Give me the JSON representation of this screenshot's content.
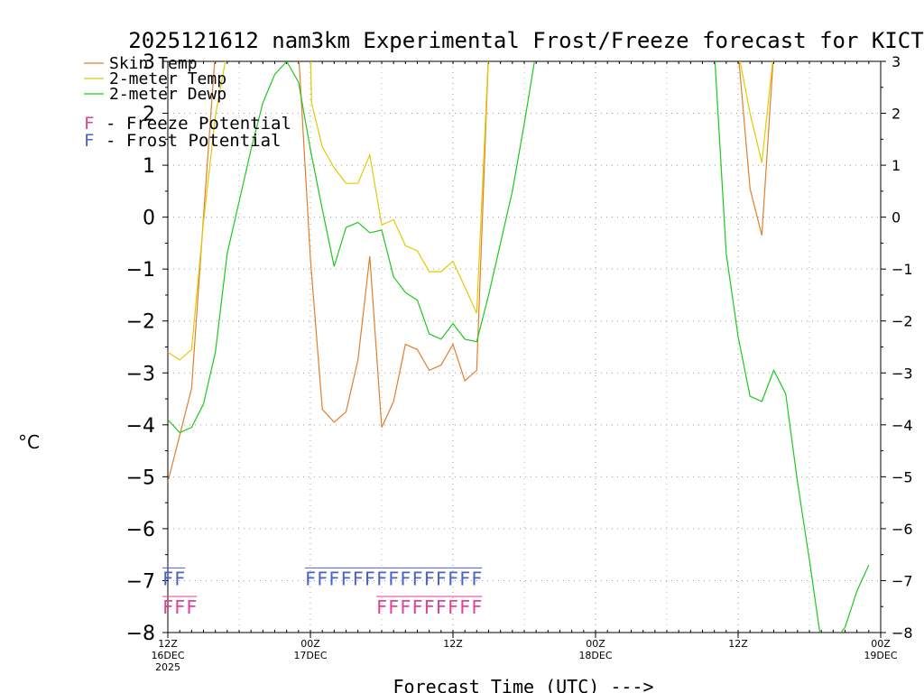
{
  "chart_data": {
    "type": "line",
    "title": "2025121612 nam3km Experimental Frost/Freeze forecast for KICT",
    "ylabel": "°C",
    "xlabel": "Forecast Time (UTC) --->",
    "ylim": [
      -8,
      3
    ],
    "xlim": [
      0,
      60
    ],
    "x_units": "hours since 2025-12-16 12Z",
    "grid": true,
    "yticks": [
      {
        "value": 3,
        "left": "3",
        "right": "3"
      },
      {
        "value": 2,
        "left": "2",
        "right": "2"
      },
      {
        "value": 1,
        "left": "1",
        "right": "1"
      },
      {
        "value": 0,
        "left": "0",
        "right": "0"
      },
      {
        "value": -1,
        "left": "−1",
        "right": "−1"
      },
      {
        "value": -2,
        "left": "−2",
        "right": "−2"
      },
      {
        "value": -3,
        "left": "−3",
        "right": "−3"
      },
      {
        "value": -4,
        "left": "−4",
        "right": "−4"
      },
      {
        "value": -5,
        "left": "−5",
        "right": "−5"
      },
      {
        "value": -6,
        "left": "−6",
        "right": "−6"
      },
      {
        "value": -7,
        "left": "−7",
        "right": "−7"
      },
      {
        "value": -8,
        "left": "−8",
        "right": "−8"
      }
    ],
    "xticks": [
      {
        "hour": 0,
        "lines": [
          "12Z",
          "16DEC",
          "2025"
        ]
      },
      {
        "hour": 12,
        "lines": [
          "00Z",
          "17DEC"
        ]
      },
      {
        "hour": 24,
        "lines": [
          "12Z"
        ]
      },
      {
        "hour": 36,
        "lines": [
          "00Z",
          "18DEC"
        ]
      },
      {
        "hour": 48,
        "lines": [
          "12Z"
        ]
      },
      {
        "hour": 60,
        "lines": [
          "00Z",
          "19DEC"
        ]
      }
    ],
    "series": [
      {
        "name": "Skin Temp",
        "color": "#e07f2e",
        "points": [
          [
            0,
            -5.1
          ],
          [
            1,
            -4.2
          ],
          [
            2,
            -3.3
          ],
          [
            3,
            0.0
          ],
          [
            4,
            3.2
          ],
          [
            11,
            3.2
          ],
          [
            12,
            -0.8
          ],
          [
            13,
            -3.7
          ],
          [
            14,
            -3.95
          ],
          [
            15,
            -3.75
          ],
          [
            16,
            -2.75
          ],
          [
            17,
            -0.75
          ],
          [
            18,
            -4.05
          ],
          [
            19,
            -3.55
          ],
          [
            20,
            -2.45
          ],
          [
            21,
            -2.55
          ],
          [
            22,
            -2.95
          ],
          [
            23,
            -2.85
          ],
          [
            24,
            -2.45
          ],
          [
            25,
            -3.15
          ],
          [
            26,
            -2.95
          ],
          [
            27,
            3.2
          ],
          [
            48,
            3.2
          ],
          [
            49,
            0.55
          ],
          [
            50,
            -0.35
          ],
          [
            51,
            3.2
          ]
        ]
      },
      {
        "name": "2-meter Temp",
        "color": "#e6c800",
        "points": [
          [
            0,
            -2.6
          ],
          [
            1,
            -2.75
          ],
          [
            2,
            -2.55
          ],
          [
            3,
            -0.1
          ],
          [
            4,
            1.95
          ],
          [
            5,
            3.2
          ],
          [
            12,
            3.2
          ],
          [
            12.1,
            2.2
          ],
          [
            13,
            1.35
          ],
          [
            14,
            0.95
          ],
          [
            15,
            0.65
          ],
          [
            16,
            0.65
          ],
          [
            17,
            1.2
          ],
          [
            18,
            -0.15
          ],
          [
            19,
            -0.05
          ],
          [
            20,
            -0.55
          ],
          [
            21,
            -0.65
          ],
          [
            22,
            -1.05
          ],
          [
            23,
            -1.05
          ],
          [
            24,
            -0.85
          ],
          [
            25,
            -1.35
          ],
          [
            26,
            -1.85
          ],
          [
            27,
            3.2
          ],
          [
            48,
            3.2
          ],
          [
            49,
            2.0
          ],
          [
            50,
            1.05
          ],
          [
            51,
            3.2
          ]
        ]
      },
      {
        "name": "2-meter Dewp",
        "color": "#1ec81e",
        "points": [
          [
            0,
            -3.9
          ],
          [
            1,
            -4.15
          ],
          [
            2,
            -4.05
          ],
          [
            3,
            -3.6
          ],
          [
            4,
            -2.6
          ],
          [
            5,
            -0.7
          ],
          [
            6,
            0.3
          ],
          [
            7,
            1.3
          ],
          [
            8,
            2.2
          ],
          [
            9,
            2.75
          ],
          [
            10,
            3.0
          ],
          [
            11,
            2.6
          ],
          [
            12,
            1.3
          ],
          [
            13,
            0.15
          ],
          [
            14,
            -0.95
          ],
          [
            15,
            -0.2
          ],
          [
            16,
            -0.1
          ],
          [
            17,
            -0.3
          ],
          [
            18,
            -0.25
          ],
          [
            19,
            -1.15
          ],
          [
            20,
            -1.45
          ],
          [
            21,
            -1.6
          ],
          [
            22,
            -2.25
          ],
          [
            23,
            -2.35
          ],
          [
            24,
            -2.05
          ],
          [
            25,
            -2.35
          ],
          [
            26,
            -2.4
          ],
          [
            27,
            -1.5
          ],
          [
            28,
            -0.5
          ],
          [
            29,
            0.5
          ],
          [
            30,
            1.8
          ],
          [
            31,
            3.2
          ],
          [
            46,
            3.2
          ],
          [
            47,
            -0.7
          ],
          [
            48,
            -2.3
          ],
          [
            49,
            -3.45
          ],
          [
            50,
            -3.55
          ],
          [
            51,
            -2.95
          ],
          [
            52,
            -3.4
          ],
          [
            53,
            -5.1
          ],
          [
            54,
            -6.6
          ],
          [
            55,
            -8.2
          ],
          [
            56,
            -8.2
          ],
          [
            57,
            -7.9
          ],
          [
            58,
            -7.2
          ],
          [
            59,
            -6.7
          ]
        ]
      }
    ],
    "legend": [
      {
        "label": "Skin Temp",
        "color": "#e07f2e"
      },
      {
        "label": "2-meter Temp",
        "color": "#e6c800"
      },
      {
        "label": "2-meter Dewp",
        "color": "#1ec81e"
      }
    ],
    "flag_legend": [
      {
        "letter": "F",
        "label": "- Freeze Potential",
        "color": "#e0428f"
      },
      {
        "letter": "F",
        "label": "- Frost Potential",
        "color": "#4a62c8"
      }
    ],
    "frost_flags": {
      "color": "#4a62c8",
      "y": -7.05,
      "runs": [
        [
          0,
          1
        ],
        [
          12,
          26
        ]
      ],
      "letter": "F"
    },
    "freeze_flags": {
      "color": "#e0428f",
      "y": -7.6,
      "runs": [
        [
          0,
          2
        ],
        [
          18,
          26
        ]
      ],
      "letter": "F"
    }
  }
}
